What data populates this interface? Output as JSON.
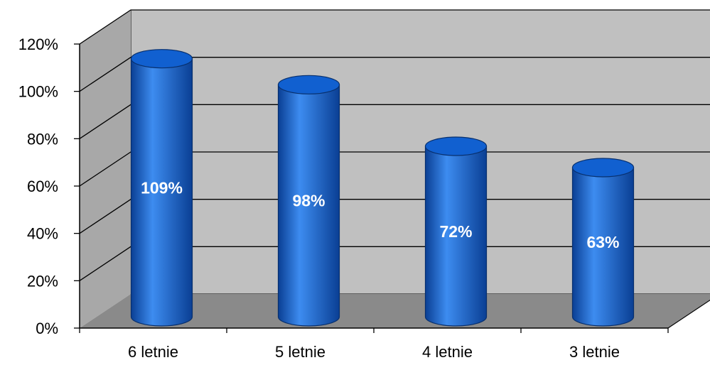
{
  "chart_data": {
    "type": "bar",
    "style": "3d-cylinder",
    "categories": [
      "6 letnie",
      "5 letnie",
      "4 letnie",
      "3 letnie"
    ],
    "values": [
      109,
      98,
      72,
      63
    ],
    "data_labels": [
      "109%",
      "98%",
      "72%",
      "63%"
    ],
    "ylim": [
      0,
      120
    ],
    "ytick_values": [
      0,
      20,
      40,
      60,
      80,
      100,
      120
    ],
    "ytick_labels": [
      "0%",
      "20%",
      "40%",
      "60%",
      "80%",
      "100%",
      "120%"
    ],
    "grid": true,
    "legend": false,
    "colors": {
      "bar": "#1160d0",
      "bar_dark": "#0a3f94",
      "bar_light": "#3d8cf0",
      "wall": "#c0c0c0",
      "floor": "#8a8a8a",
      "gridline": "#000000"
    }
  }
}
